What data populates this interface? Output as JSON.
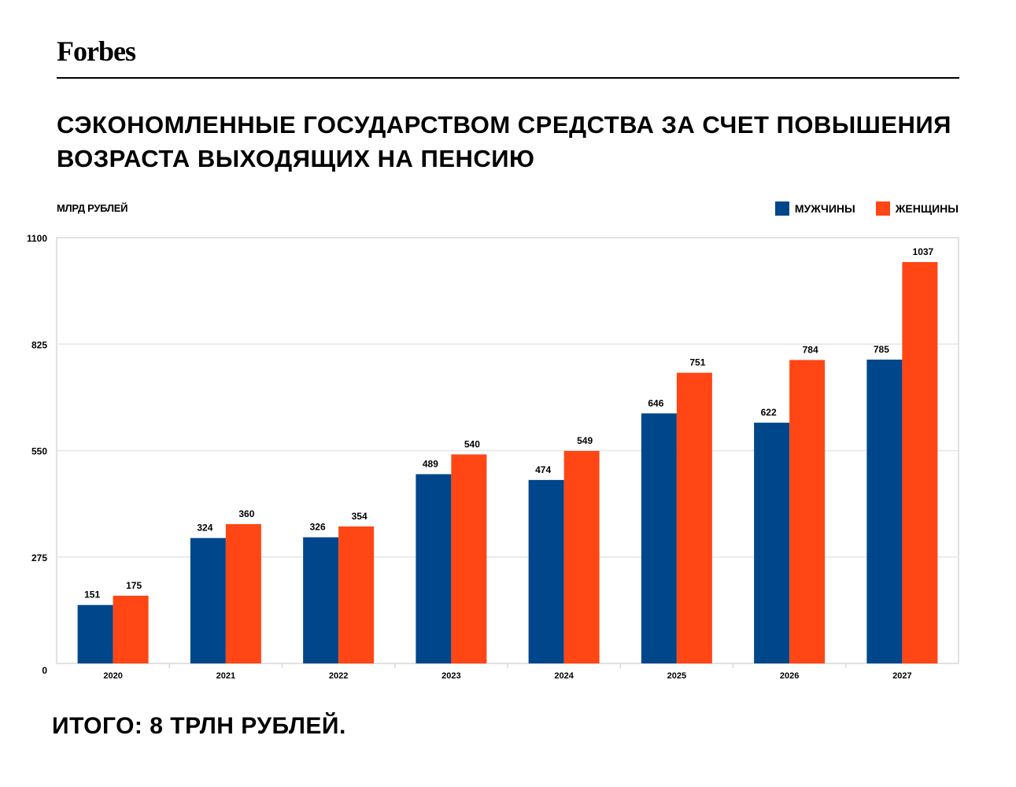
{
  "brand": "Forbes",
  "title": "СЭКОНОМЛЕННЫЕ ГОСУДАРСТВОМ СРЕДСТВА ЗА СЧЕТ ПОВЫШЕНИЯ ВОЗРАСТА ВЫХОДЯЩИХ НА ПЕНСИЮ",
  "footer": "ИТОГО: 8 ТРЛН РУБЛЕЙ.",
  "chart_data": {
    "type": "bar",
    "ylabel": "МЛРД РУБЛЕЙ",
    "ylim": [
      0,
      1100
    ],
    "yticks": [
      0,
      275,
      550,
      825,
      1100
    ],
    "grid": true,
    "legend_position": "top-right",
    "categories": [
      "2020",
      "2021",
      "2022",
      "2023",
      "2024",
      "2025",
      "2026",
      "2027"
    ],
    "series": [
      {
        "name": "МУЖЧИНЫ",
        "color": "#00468a",
        "values": [
          151,
          324,
          326,
          489,
          474,
          646,
          622,
          785
        ]
      },
      {
        "name": "ЖЕНЩИНЫ",
        "color": "#ff4614",
        "values": [
          175,
          360,
          354,
          540,
          549,
          751,
          784,
          1037
        ]
      }
    ]
  }
}
